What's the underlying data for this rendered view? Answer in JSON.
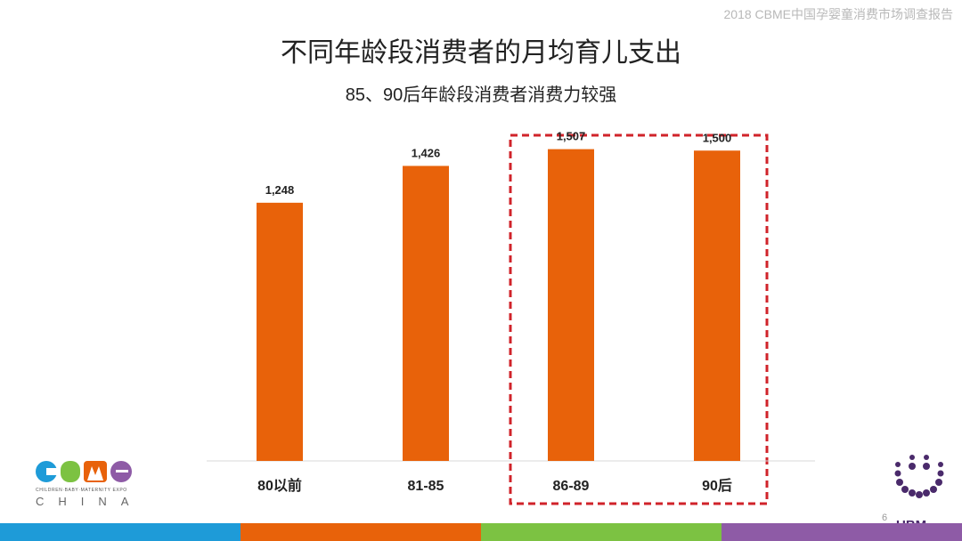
{
  "header_note": "2018 CBME中国孕婴童消费市场调查报告",
  "page_number": "6",
  "brands": {
    "cbme_logo_letters": "CBME",
    "cbme_tagline": "CHILDREN·BABY·MATERNITY EXPO",
    "cbme_china": "CHINA",
    "ubm": "UBM"
  },
  "colors": {
    "bar": "#E8620A",
    "highlight_box": "#D0232A",
    "stripes": [
      "#1E9BD8",
      "#E8620A",
      "#7CC242",
      "#8E5BA6"
    ]
  },
  "chart_data": {
    "type": "bar",
    "title": "不同年龄段消费者的月均育儿支出",
    "subtitle": "85、90后年龄段消费者消费力较强",
    "categories": [
      "80以前",
      "81-85",
      "86-89",
      "90后"
    ],
    "values": [
      1248,
      1426,
      1507,
      1500
    ],
    "value_labels": [
      "1,248",
      "1,426",
      "1,507",
      "1,500"
    ],
    "xlabel": "",
    "ylabel": "",
    "ylim": [
      0,
      1600
    ],
    "grid": false,
    "legend": "none",
    "highlight": [
      "86-89",
      "90后"
    ]
  }
}
